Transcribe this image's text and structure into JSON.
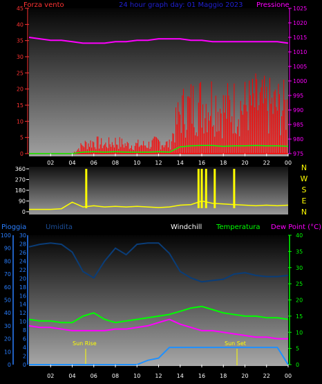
{
  "top": {
    "left_label": "Forza vento",
    "title": "24 hour graph day: 01 Maggio 2023",
    "right_label": "Pressione",
    "left_ticks": [
      "0",
      "5",
      "10",
      "15",
      "20",
      "25",
      "30",
      "35",
      "40",
      "45"
    ],
    "right_ticks": [
      "975",
      "980",
      "985",
      "990",
      "995",
      "1000",
      "1005",
      "1010",
      "1015",
      "1020",
      "1025"
    ],
    "x_ticks": [
      "02",
      "04",
      "06",
      "08",
      "10",
      "12",
      "14",
      "16",
      "18",
      "20",
      "22",
      "00"
    ]
  },
  "mid": {
    "left_ticks": [
      "0",
      "90",
      "180",
      "270",
      "360"
    ],
    "right_letters": [
      "N",
      "W",
      "S",
      "E",
      "N"
    ]
  },
  "bottom": {
    "header_left": "Pioggia",
    "header_umidita": "Umidita",
    "header_windchill": "Windchill",
    "header_temperatura": "Temperatura",
    "header_dewpoint": "Dew Point (°C)",
    "rain_ticks": [
      "0",
      "10",
      "20",
      "30",
      "40",
      "50",
      "60",
      "70",
      "80",
      "90",
      "100"
    ],
    "temp_ticks_left": [
      "0",
      "2",
      "4",
      "6",
      "8",
      "10",
      "12",
      "14",
      "16",
      "18",
      "20",
      "22",
      "24",
      "26",
      "28",
      "30"
    ],
    "right_ticks": [
      "0",
      "5",
      "10",
      "15",
      "20",
      "25",
      "30",
      "35",
      "40"
    ],
    "x_ticks": [
      "02",
      "04",
      "06",
      "08",
      "10",
      "12",
      "14",
      "16",
      "18",
      "20",
      "22",
      "00"
    ],
    "sunrise_label": "Sun Rise",
    "sunset_label": "Sun Set"
  },
  "colors": {
    "wind": "#ff0000",
    "gust": "#00ff00",
    "pressure": "#ff00ff",
    "direction": "#ffff00",
    "humidity": "#0a3d78",
    "temperature": "#00ff00",
    "dewpoint": "#ff00ff",
    "rain": "#1e90ff",
    "axis_left": "#ff3333",
    "axis_right": "#ff00ff",
    "axis_green": "#00ff00",
    "axis_blue": "#2a7fff",
    "title": "#2020d0"
  },
  "chart_data": [
    {
      "type": "line",
      "xlabel": "",
      "ylabel": "Forza vento",
      "ylim": [
        0,
        45
      ],
      "y2label": "Pressione",
      "y2lim": [
        975,
        1025
      ],
      "x": [
        "00:00",
        "01:00",
        "02:00",
        "03:00",
        "04:00",
        "05:00",
        "06:00",
        "07:00",
        "08:00",
        "09:00",
        "10:00",
        "11:00",
        "12:00",
        "13:00",
        "14:00",
        "15:00",
        "16:00",
        "17:00",
        "18:00",
        "19:00",
        "20:00",
        "21:00",
        "22:00",
        "23:00",
        "00:00"
      ],
      "series": [
        {
          "name": "Forza vento",
          "values": [
            0,
            0,
            0,
            0,
            0,
            3,
            4,
            3,
            4,
            3,
            3,
            3,
            4,
            3,
            14,
            16,
            17,
            18,
            15,
            16,
            16,
            17,
            16,
            16,
            15
          ]
        },
        {
          "name": "Pressione",
          "values": [
            1015,
            1014.5,
            1014,
            1014,
            1013.5,
            1013,
            1013,
            1013,
            1013.5,
            1013.5,
            1014,
            1014,
            1014.5,
            1014.5,
            1014.5,
            1014,
            1014,
            1013.5,
            1013.5,
            1013.5,
            1013.5,
            1013.5,
            1013.5,
            1013.5,
            1013
          ]
        }
      ]
    },
    {
      "type": "line",
      "ylim": [
        0,
        360
      ],
      "x": [
        "00:00",
        "01:00",
        "02:00",
        "03:00",
        "04:00",
        "05:00",
        "06:00",
        "07:00",
        "08:00",
        "09:00",
        "10:00",
        "11:00",
        "12:00",
        "13:00",
        "14:00",
        "15:00",
        "16:00",
        "17:00",
        "18:00",
        "19:00",
        "20:00",
        "21:00",
        "22:00",
        "23:00",
        "00:00"
      ],
      "series": [
        {
          "name": "direction",
          "values": [
            20,
            20,
            20,
            25,
            80,
            40,
            50,
            40,
            45,
            40,
            45,
            40,
            35,
            40,
            55,
            60,
            90,
            70,
            65,
            60,
            55,
            50,
            55,
            50,
            55
          ]
        }
      ]
    },
    {
      "type": "line",
      "ylim": [
        0,
        30
      ],
      "y2lim": [
        0,
        40
      ],
      "x": [
        "00:00",
        "01:00",
        "02:00",
        "03:00",
        "04:00",
        "05:00",
        "06:00",
        "07:00",
        "08:00",
        "09:00",
        "10:00",
        "11:00",
        "12:00",
        "13:00",
        "14:00",
        "15:00",
        "16:00",
        "17:00",
        "18:00",
        "19:00",
        "20:00",
        "21:00",
        "22:00",
        "23:00",
        "00:00"
      ],
      "series": [
        {
          "name": "Umidita",
          "values": [
            91,
            93,
            94,
            93,
            87,
            72,
            67,
            80,
            90,
            85,
            93,
            94,
            94,
            86,
            72,
            67,
            64,
            65,
            66,
            70,
            71,
            69,
            68,
            68,
            69
          ]
        },
        {
          "name": "Temperatura",
          "values": [
            14,
            13.5,
            13.5,
            13,
            13,
            15,
            16,
            14,
            13,
            13.5,
            14,
            14.5,
            15,
            15.5,
            16.5,
            17.5,
            18,
            17,
            16,
            15.5,
            15,
            15,
            14.5,
            14.5,
            14
          ]
        },
        {
          "name": "Dew Point (°C)",
          "values": [
            12,
            11.5,
            11.5,
            11,
            10.5,
            10.5,
            10.5,
            10.5,
            11,
            11,
            11.5,
            12,
            13,
            14,
            12.5,
            11.5,
            10.5,
            10.5,
            10,
            9.5,
            9,
            8.5,
            8.5,
            8,
            8
          ]
        },
        {
          "name": "Pioggia",
          "values": [
            0,
            0,
            0,
            0,
            0,
            0,
            0,
            0,
            0,
            0,
            0,
            1,
            1.5,
            4,
            4,
            4,
            4,
            4,
            4,
            4,
            4,
            4,
            4,
            4,
            0
          ]
        }
      ]
    }
  ]
}
